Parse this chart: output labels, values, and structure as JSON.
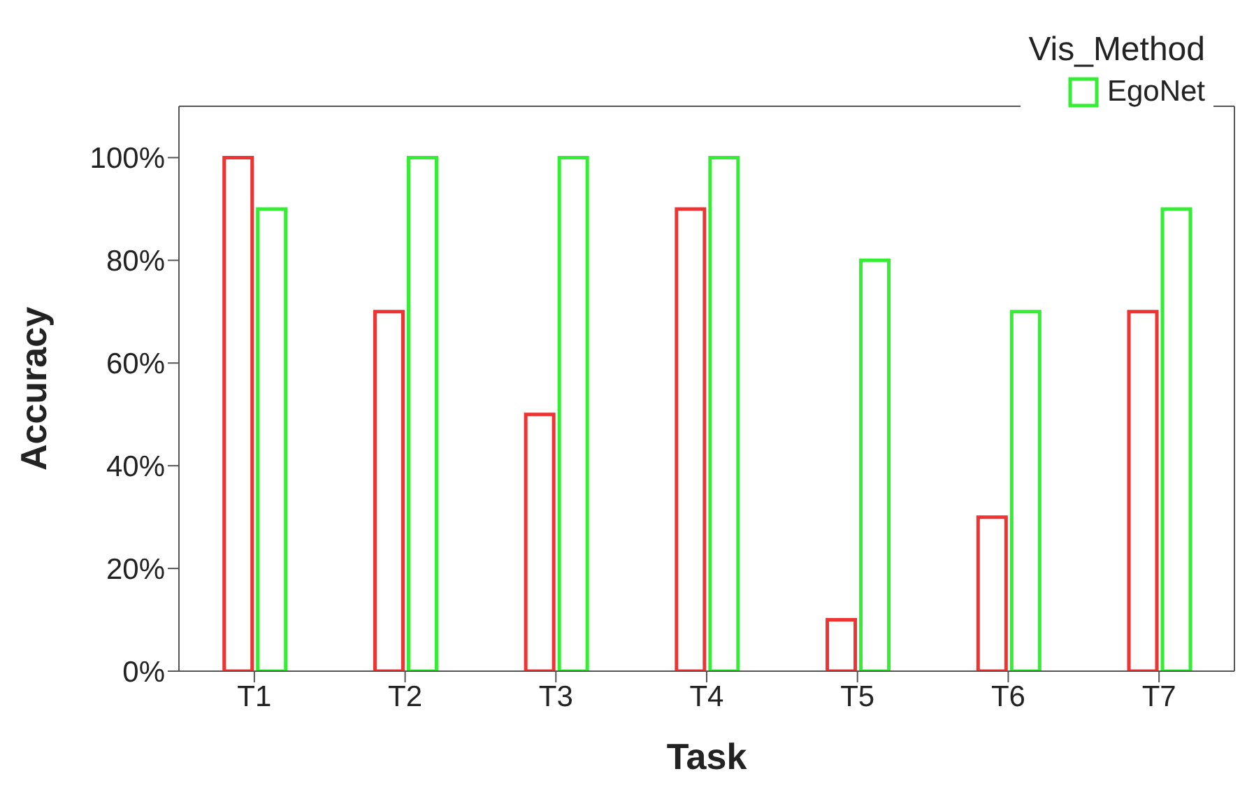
{
  "chart_data": {
    "type": "bar",
    "xlabel": "Task",
    "ylabel": "Accuracy",
    "legend_title": "Vis_Method",
    "categories": [
      "T1",
      "T2",
      "T3",
      "T4",
      "T5",
      "T6",
      "T7"
    ],
    "series": [
      {
        "color": "#ee3333",
        "values": [
          100,
          70,
          50,
          90,
          10,
          30,
          70
        ]
      },
      {
        "name": "EgoNet",
        "color": "#33ee33",
        "values": [
          90,
          100,
          100,
          100,
          80,
          70,
          90
        ]
      }
    ],
    "ylim": [
      0,
      110
    ],
    "yticks": [
      {
        "value": 0,
        "label": "0%"
      },
      {
        "value": 20,
        "label": "20%"
      },
      {
        "value": 40,
        "label": "40%"
      },
      {
        "value": 60,
        "label": "60%"
      },
      {
        "value": 80,
        "label": "80%"
      },
      {
        "value": 100,
        "label": "100%"
      }
    ],
    "grid": false,
    "legend": "top right"
  }
}
